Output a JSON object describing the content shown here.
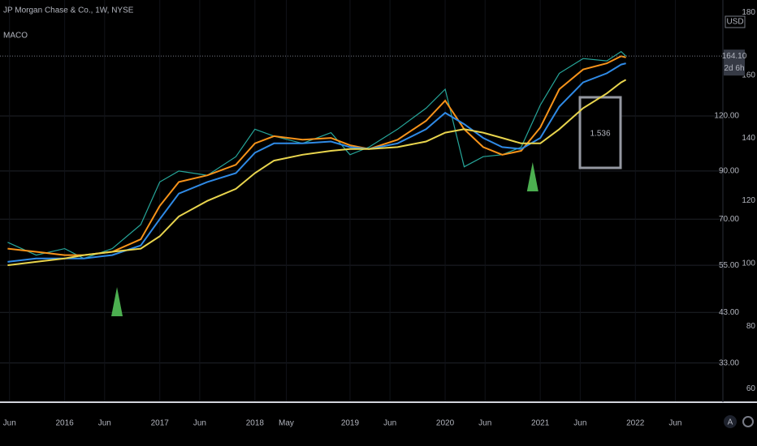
{
  "chart_data": {
    "type": "line",
    "title": "JP Morgan Chase & Co., 1W, NYSE",
    "indicator": "MACO",
    "currency": "USD",
    "log_scale": true,
    "grid": true,
    "x": [
      2015.4,
      2015.7,
      2016.0,
      2016.2,
      2016.5,
      2016.8,
      2017.0,
      2017.2,
      2017.5,
      2017.8,
      2018.0,
      2018.2,
      2018.5,
      2018.8,
      2019.0,
      2019.2,
      2019.5,
      2019.8,
      2020.0,
      2020.2,
      2020.4,
      2020.6,
      2020.8,
      2021.0,
      2021.2,
      2021.45,
      2021.7,
      2021.85,
      2021.9
    ],
    "series": [
      {
        "color": "#26a69a",
        "values": [
          62,
          58,
          60,
          57,
          60,
          68,
          85,
          90,
          88,
          97,
          112,
          108,
          104,
          110,
          98,
          102,
          112,
          125,
          138,
          92,
          97,
          98,
          102,
          127,
          150,
          162,
          160,
          168,
          164.1
        ]
      },
      {
        "color": "#f7931a",
        "values": [
          60,
          59,
          58,
          58,
          59,
          63,
          75,
          85,
          88,
          93,
          104,
          108,
          106,
          107,
          103,
          101,
          106,
          117,
          130,
          112,
          102,
          98,
          100,
          113,
          138,
          153,
          158,
          164,
          163
        ]
      },
      {
        "color": "#2f8ae6",
        "values": [
          56,
          57,
          57,
          57,
          58,
          61,
          70,
          80,
          85,
          89,
          99,
          104,
          104,
          105,
          102,
          101,
          104,
          112,
          122,
          115,
          107,
          102,
          101,
          107,
          126,
          143,
          150,
          157,
          158
        ]
      },
      {
        "color": "#e8d44d",
        "values": [
          55,
          56,
          57,
          58,
          59,
          60,
          64,
          71,
          77,
          82,
          89,
          95,
          98,
          100,
          101,
          101,
          102,
          105,
          110,
          112,
          110,
          107,
          104,
          104,
          112,
          125,
          135,
          143,
          145
        ]
      }
    ],
    "signals": [
      2016.55,
      2020.92
    ],
    "signal_color": "#4caf50",
    "ratio": 1.536,
    "last_price": 164.1,
    "last_price_label": "164.10",
    "countdown": "2d 6h",
    "xlim": [
      2015.32,
      2022.92
    ],
    "xticks": [
      {
        "value": 2015.42,
        "label": "Jun"
      },
      2016,
      {
        "value": 2016.42,
        "label": "Jun"
      },
      2017,
      {
        "value": 2017.42,
        "label": "Jun"
      },
      2018,
      {
        "value": 2018.33,
        "label": "May"
      },
      2019,
      {
        "value": 2019.42,
        "label": "Jun"
      },
      2020,
      {
        "value": 2020.42,
        "label": "Jun"
      },
      2021,
      {
        "value": 2021.42,
        "label": "Jun"
      },
      2022,
      {
        "value": 2022.42,
        "label": "Jun"
      }
    ],
    "ylim": [
      27,
      220
    ],
    "yticks": [
      {
        "value": 33,
        "label": "33.00"
      },
      {
        "value": 43,
        "label": "43.00"
      },
      {
        "value": 55,
        "label": "55.00"
      },
      {
        "value": 70,
        "label": "70.00"
      },
      {
        "value": 90,
        "label": "90.00"
      },
      {
        "value": 120,
        "label": "120.00"
      }
    ],
    "y2lim": [
      56,
      184
    ],
    "y2ticks": [
      60,
      80,
      100,
      120,
      140,
      160,
      180
    ]
  }
}
